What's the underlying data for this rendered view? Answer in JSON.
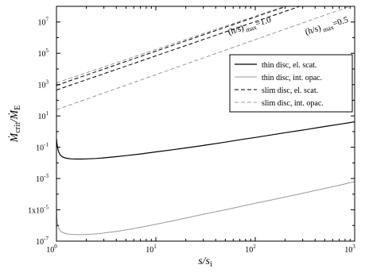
{
  "chart_data": {
    "type": "line",
    "x_scale": "log",
    "y_scale": "log",
    "xlim": [
      1,
      1000
    ],
    "ylim": [
      1e-07,
      100000000.0
    ],
    "xlabel": "s/s",
    "xlabel_sub": "i",
    "ylabel": "Ṁ",
    "ylabel_sub": "crit",
    "ylabel_mid": "/Ṁ",
    "ylabel_sub2": "E",
    "x_ticks": [
      {
        "value": 1,
        "mant": "10",
        "exp": "0"
      },
      {
        "value": 10,
        "mant": "10",
        "exp": "1"
      },
      {
        "value": 100,
        "mant": "10",
        "exp": "2"
      },
      {
        "value": 1000,
        "mant": "10",
        "exp": "3"
      }
    ],
    "y_ticks": [
      {
        "value": 1e-07,
        "mant": "10",
        "exp": "-7"
      },
      {
        "value": 1e-05,
        "mant": "1x10",
        "exp": "-5"
      },
      {
        "value": 0.001,
        "mant": "10",
        "exp": "-3"
      },
      {
        "value": 0.1,
        "mant": "10",
        "exp": "-1"
      },
      {
        "value": 10,
        "mant": "10",
        "exp": "1"
      },
      {
        "value": 1000,
        "mant": "10",
        "exp": "3"
      },
      {
        "value": 100000,
        "mant": "10",
        "exp": "5"
      },
      {
        "value": 10000000,
        "mant": "10",
        "exp": "7"
      }
    ],
    "series": [
      {
        "name": "thin disc, el. scat.",
        "color": "#000000",
        "dash": "solid",
        "x": [
          1.0,
          1.01,
          1.02,
          1.04,
          1.06,
          1.1,
          1.15,
          1.25,
          1.4,
          1.6,
          1.8,
          2.0,
          2.5,
          3,
          4,
          5,
          7,
          10,
          15,
          20,
          30,
          50,
          70,
          100,
          150,
          200,
          300,
          500,
          700,
          1000
        ],
        "y": [
          0.35,
          0.2,
          0.12,
          0.065,
          0.045,
          0.03,
          0.024,
          0.02,
          0.018,
          0.0175,
          0.0175,
          0.018,
          0.019,
          0.021,
          0.025,
          0.029,
          0.037,
          0.05,
          0.07,
          0.09,
          0.13,
          0.21,
          0.3,
          0.42,
          0.63,
          0.85,
          1.25,
          2.1,
          2.9,
          4.2
        ]
      },
      {
        "name": "thin disc, int. opac.",
        "color": "#999999",
        "dash": "solid",
        "x": [
          1.0,
          1.01,
          1.02,
          1.04,
          1.06,
          1.1,
          1.15,
          1.25,
          1.4,
          1.6,
          1.8,
          2.0,
          2.5,
          3,
          4,
          5,
          7,
          10,
          15,
          20,
          30,
          50,
          70,
          100,
          150,
          200,
          300,
          500,
          700,
          1000
        ],
        "y": [
          1.5e-05,
          3e-06,
          1.6e-06,
          8.5e-07,
          6e-07,
          4.4e-07,
          3.6e-07,
          3e-07,
          2.7e-07,
          2.6e-07,
          2.6e-07,
          2.65e-07,
          2.9e-07,
          3.3e-07,
          4.2e-07,
          5.2e-07,
          7.6e-07,
          1.2e-06,
          2e-06,
          3e-06,
          5.2e-06,
          1e-05,
          1.6e-05,
          2.6e-05,
          4.4e-05,
          6.6e-05,
          0.000114,
          0.000235,
          0.00037,
          0.00065
        ]
      },
      {
        "name": "slim disc, el. scat.",
        "color": "#000000",
        "dash": "5,3",
        "x": [
          1,
          1000
        ],
        "y_upper": [
          900,
          3200000000.0
        ],
        "y_lower": [
          450,
          1600000000.0
        ]
      },
      {
        "name": "slim disc, int. opac.",
        "color": "#999999",
        "dash": "5,3",
        "x": [
          1,
          1000
        ],
        "y_upper": [
          1300,
          3200000000.0
        ],
        "y_lower": [
          25,
          130000000.0
        ]
      }
    ],
    "annotations": [
      {
        "text": "(h/s)",
        "sub": "max",
        "tail": "=1.0"
      },
      {
        "text": "(h/s)",
        "sub": "max",
        "tail": "=0.5"
      }
    ],
    "legend": {
      "placement": "right"
    }
  }
}
